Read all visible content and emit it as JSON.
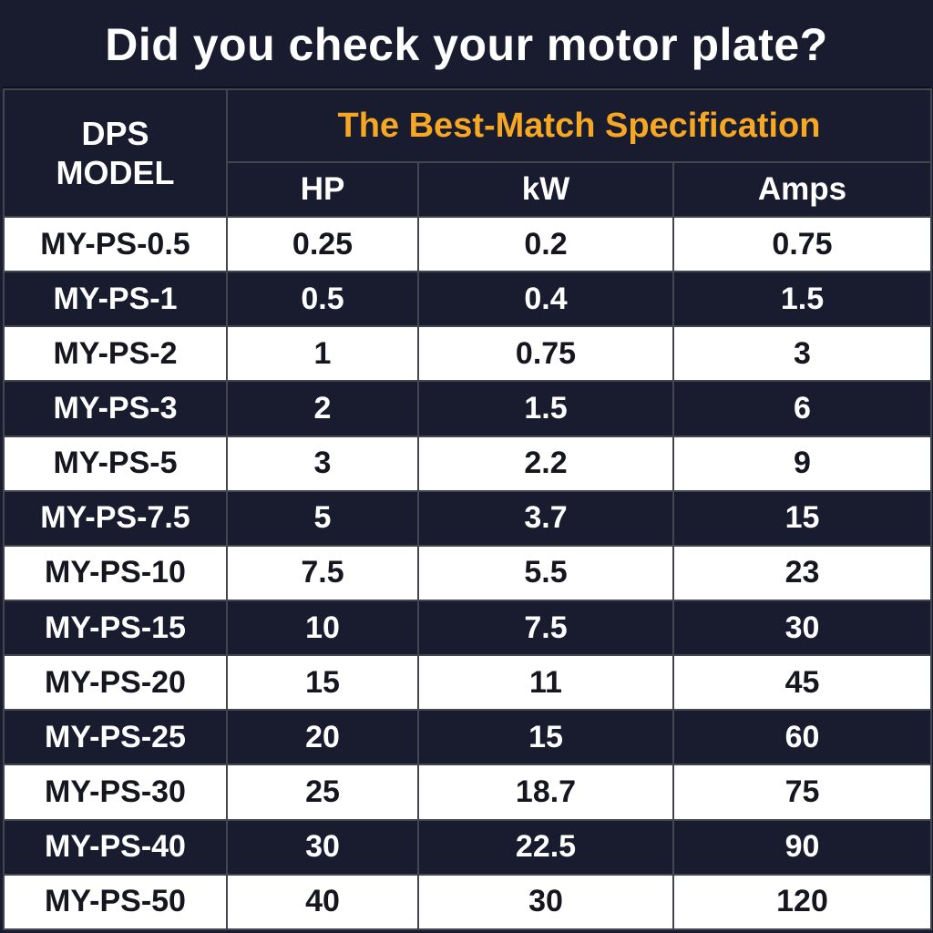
{
  "title": "Did you check your motor plate?",
  "header": {
    "model_line1": "DPS",
    "model_line2": "MODEL",
    "spec_group": "The Best-Match Specification",
    "columns": [
      "HP",
      "kW",
      "Amps"
    ]
  },
  "chart_data": {
    "type": "table",
    "title": "Did you check your motor plate?",
    "group_header": "The Best-Match Specification",
    "columns": [
      "DPS MODEL",
      "HP",
      "kW",
      "Amps"
    ],
    "rows": [
      [
        "MY-PS-0.5",
        "0.25",
        "0.2",
        "0.75"
      ],
      [
        "MY-PS-1",
        "0.5",
        "0.4",
        "1.5"
      ],
      [
        "MY-PS-2",
        "1",
        "0.75",
        "3"
      ],
      [
        "MY-PS-3",
        "2",
        "1.5",
        "6"
      ],
      [
        "MY-PS-5",
        "3",
        "2.2",
        "9"
      ],
      [
        "MY-PS-7.5",
        "5",
        "3.7",
        "15"
      ],
      [
        "MY-PS-10",
        "7.5",
        "5.5",
        "23"
      ],
      [
        "MY-PS-15",
        "10",
        "7.5",
        "30"
      ],
      [
        "MY-PS-20",
        "15",
        "11",
        "45"
      ],
      [
        "MY-PS-25",
        "20",
        "15",
        "60"
      ],
      [
        "MY-PS-30",
        "25",
        "18.7",
        "75"
      ],
      [
        "MY-PS-40",
        "30",
        "22.5",
        "90"
      ],
      [
        "MY-PS-50",
        "40",
        "30",
        "120"
      ]
    ]
  },
  "colors": {
    "background_navy": "#181C2E",
    "title_text": "#FFFFFF",
    "spec_header_orange": "#F6A723",
    "row_light_bg": "#FFFFFF",
    "row_light_text": "#15161F",
    "row_dark_bg": "#181C2E",
    "row_dark_text": "#FFFFFF",
    "grid_line": "#43454F"
  }
}
